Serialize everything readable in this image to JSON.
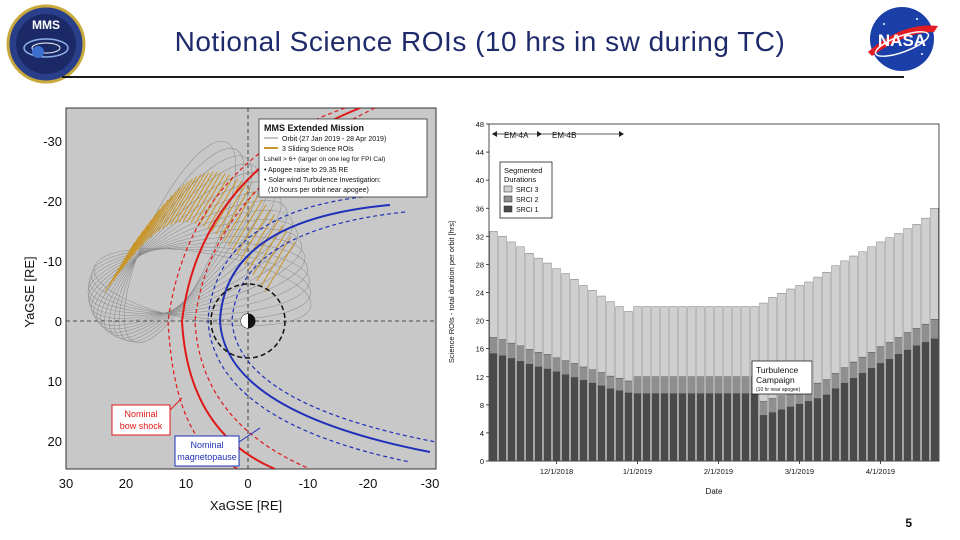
{
  "slide": {
    "title": "Notional Science ROIs (10 hrs in sw during TC)",
    "page_number": "5",
    "mms_logo_text": "MMS",
    "nasa_logo_text": "NASA"
  },
  "orbit_plot": {
    "legend_title": "MMS Extended Mission",
    "legend_items": [
      "Orbit (27 Jan 2019 - 28 Apr 2019)",
      "3 Sliding Science ROIs",
      "Lshell > 6+ (larger on one leg for FPI Cal)",
      "• Apogee raise to 29.35 RE",
      "• Solar wind Turbulence Investigation:",
      "(10 hours per orbit near apogee)"
    ],
    "x_ticks": [
      "30",
      "20",
      "10",
      "0",
      "-10",
      "-20",
      "-30"
    ],
    "y_ticks": [
      "-30",
      "-20",
      "-10",
      "0",
      "10",
      "20"
    ],
    "xlabel": "XaGSE [RE]",
    "ylabel": "YaGSE [RE]",
    "callout_bow_shock": [
      "Nominal",
      "bow shock"
    ],
    "callout_magnetopause": [
      "Nominal",
      "magnetopause"
    ],
    "colors": {
      "bg": "#c8c8c8",
      "bow_shock": "#e01818",
      "magnetopause": "#1f2fb8",
      "roi": "#c8952a",
      "orbit": "#8a8a8a"
    }
  },
  "chart_data": {
    "type": "bar",
    "ylabel": "Science ROIs - total duration per orbit [hrs]",
    "xlabel": "Date",
    "ylim": [
      0,
      48
    ],
    "y_ticks": [
      0,
      4,
      8,
      12,
      16,
      20,
      24,
      28,
      32,
      36,
      40,
      44,
      48
    ],
    "x_tick_labels": [
      "12/1/2018",
      "1/1/2019",
      "2/1/2019",
      "3/1/2019",
      "4/1/2019"
    ],
    "x_tick_positions": [
      7.5,
      16.5,
      25.5,
      34.5,
      43.5
    ],
    "legend_title": "Segmented Durations",
    "legend": [
      "SRCI 3",
      "SRCI 2",
      "SRCI 1"
    ],
    "phase_labels": [
      "EM-4A",
      "EM-4B"
    ],
    "annotation": [
      "Turbulence",
      "Campaign",
      "(10 hr near apogee)"
    ],
    "series": [
      {
        "name": "SRCI 1",
        "color": "#4a4a4a",
        "values": [
          15.3,
          15.0,
          14.6,
          14.2,
          13.8,
          13.4,
          13.1,
          12.7,
          12.3,
          11.9,
          11.5,
          11.1,
          10.7,
          10.3,
          10.0,
          9.7,
          9.6,
          9.6,
          9.6,
          9.6,
          9.6,
          9.6,
          9.6,
          9.6,
          9.6,
          9.6,
          9.6,
          9.6,
          9.6,
          9.6,
          6.5,
          6.9,
          7.3,
          7.7,
          8.1,
          8.5,
          8.9,
          9.4,
          10.3,
          11.1,
          11.8,
          12.5,
          13.2,
          13.9,
          14.5,
          15.2,
          15.8,
          16.4,
          16.9,
          17.4
        ]
      },
      {
        "name": "SRCI 2",
        "color": "#8f8f8f",
        "values": [
          2.3,
          2.3,
          2.2,
          2.2,
          2.1,
          2.1,
          2.1,
          2.0,
          2.0,
          2.0,
          1.9,
          1.9,
          1.9,
          1.8,
          1.8,
          1.7,
          2.4,
          2.4,
          2.4,
          2.4,
          2.4,
          2.4,
          2.4,
          2.4,
          2.4,
          2.4,
          2.4,
          2.4,
          2.4,
          2.4,
          2.0,
          2.0,
          2.0,
          2.1,
          2.1,
          2.1,
          2.2,
          2.2,
          2.2,
          2.2,
          2.3,
          2.3,
          2.3,
          2.4,
          2.4,
          2.4,
          2.5,
          2.5,
          2.6,
          2.8
        ]
      },
      {
        "name": "SRCI 3",
        "color": "#cfcfcf",
        "values": [
          15.1,
          14.7,
          14.4,
          14.1,
          13.7,
          13.4,
          13.0,
          12.7,
          12.4,
          12.0,
          11.6,
          11.3,
          10.9,
          10.6,
          10.2,
          9.9,
          10.0,
          10.0,
          10.0,
          10.0,
          10.0,
          10.0,
          10.0,
          10.0,
          10.0,
          10.0,
          10.0,
          10.0,
          10.0,
          10.0,
          14.0,
          14.4,
          14.6,
          14.7,
          14.8,
          14.9,
          15.1,
          15.3,
          15.3,
          15.2,
          15.1,
          15.0,
          15.0,
          14.9,
          14.9,
          14.8,
          14.8,
          14.8,
          15.1,
          15.8
        ]
      }
    ]
  }
}
